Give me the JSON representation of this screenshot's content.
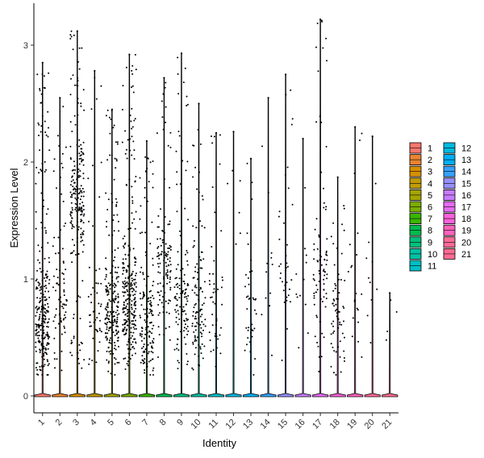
{
  "chart_data": {
    "type": "violin",
    "xlabel": "Identity",
    "ylabel": "Expression Level",
    "ylim": [
      -0.15,
      3.35
    ],
    "yticks": [
      0,
      1,
      2,
      3
    ],
    "grid": false,
    "legend_position": "right",
    "categories": [
      "1",
      "2",
      "3",
      "4",
      "5",
      "6",
      "7",
      "8",
      "9",
      "10",
      "11",
      "12",
      "13",
      "14",
      "15",
      "16",
      "17",
      "18",
      "19",
      "20",
      "21"
    ],
    "colors": [
      "#F8766D",
      "#EA8331",
      "#D89000",
      "#C09B00",
      "#A3A500",
      "#7CAE00",
      "#39B600",
      "#00BB4E",
      "#00BF7D",
      "#00C1A3",
      "#00BFC4",
      "#00BAE0",
      "#00B0F6",
      "#35A2FF",
      "#9590FF",
      "#C77CFF",
      "#E76BF3",
      "#FA62DB",
      "#FF62BC",
      "#FF6A98",
      "#FF6C91"
    ],
    "max_values": [
      2.85,
      2.55,
      3.12,
      2.78,
      2.45,
      2.92,
      2.18,
      2.72,
      2.93,
      2.5,
      2.25,
      2.26,
      2.03,
      2.55,
      2.75,
      2.2,
      3.22,
      1.87,
      2.3,
      2.22,
      0.88
    ],
    "point_density": [
      260,
      85,
      210,
      50,
      220,
      280,
      150,
      120,
      120,
      110,
      45,
      6,
      40,
      12,
      35,
      12,
      85,
      65,
      20,
      10,
      4
    ],
    "point_center": [
      0.62,
      0.9,
      1.7,
      0.6,
      0.7,
      0.8,
      0.6,
      1.1,
      0.8,
      0.8,
      0.7,
      1.8,
      0.6,
      0.9,
      1.0,
      1.0,
      1.0,
      0.6,
      1.0,
      1.0,
      0.6
    ],
    "summary": "Most cells at 0 expression per cluster; jittered points show non-zero cells up to the per-cluster maximum."
  }
}
